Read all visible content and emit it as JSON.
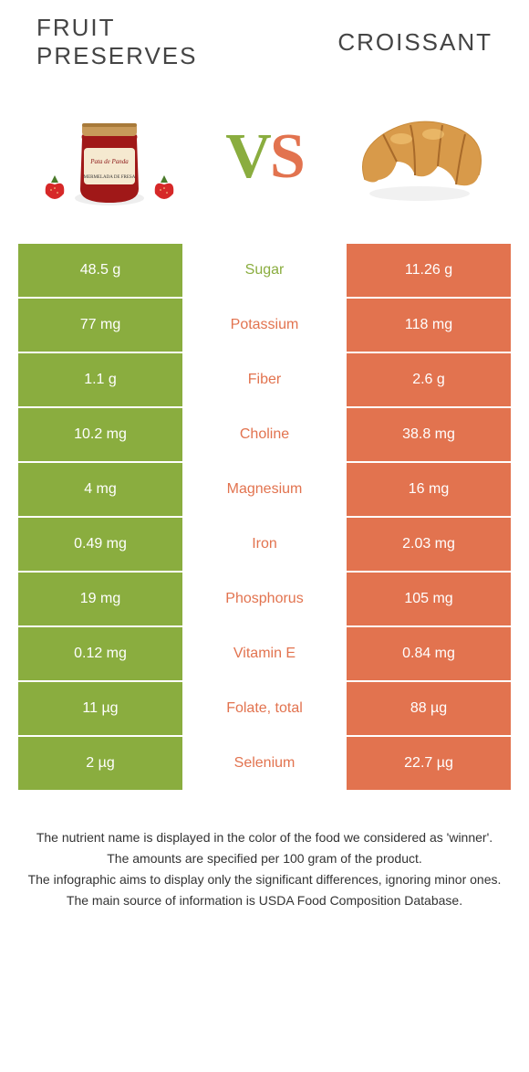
{
  "colors": {
    "left_bg": "#8aad3f",
    "right_bg": "#e2734f",
    "row_border": "#ffffff",
    "text_dark": "#333333"
  },
  "header": {
    "left_title": "FRUIT PRESERVES",
    "right_title": "CROISSANT",
    "vs_v": "V",
    "vs_s": "S"
  },
  "table": {
    "rows": [
      {
        "left": "48.5 g",
        "label": "Sugar",
        "right": "11.26 g",
        "label_color": "#8aad3f"
      },
      {
        "left": "77 mg",
        "label": "Potassium",
        "right": "118 mg",
        "label_color": "#e2734f"
      },
      {
        "left": "1.1 g",
        "label": "Fiber",
        "right": "2.6 g",
        "label_color": "#e2734f"
      },
      {
        "left": "10.2 mg",
        "label": "Choline",
        "right": "38.8 mg",
        "label_color": "#e2734f"
      },
      {
        "left": "4 mg",
        "label": "Magnesium",
        "right": "16 mg",
        "label_color": "#e2734f"
      },
      {
        "left": "0.49 mg",
        "label": "Iron",
        "right": "2.03 mg",
        "label_color": "#e2734f"
      },
      {
        "left": "19 mg",
        "label": "Phosphorus",
        "right": "105 mg",
        "label_color": "#e2734f"
      },
      {
        "left": "0.12 mg",
        "label": "Vitamin E",
        "right": "0.84 mg",
        "label_color": "#e2734f"
      },
      {
        "left": "11 µg",
        "label": "Folate, total",
        "right": "88 µg",
        "label_color": "#e2734f"
      },
      {
        "left": "2 µg",
        "label": "Selenium",
        "right": "22.7 µg",
        "label_color": "#e2734f"
      }
    ]
  },
  "footer": {
    "line1": "The nutrient name is displayed in the color of the food we considered as 'winner'.",
    "line2": "The amounts are specified per 100 gram of the product.",
    "line3": "The infographic aims to display only the significant differences, ignoring minor ones.",
    "line4": "The main source of information is USDA Food Composition Database."
  }
}
